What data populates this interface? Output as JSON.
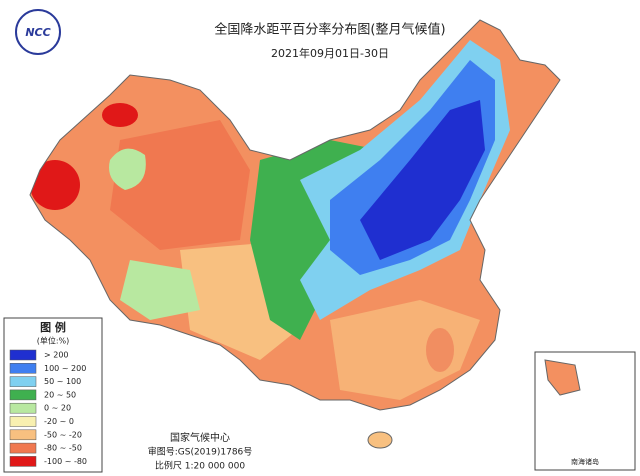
{
  "header": {
    "logo": "NCC",
    "title": "全国降水距平百分率分布图(整月气候值)",
    "subtitle": "2021年09月01日-30日"
  },
  "legend": {
    "title": "图 例",
    "unit": "(单位:%)",
    "items": [
      {
        "label": "> 200",
        "color": "#1f2fd0"
      },
      {
        "label": "100 ~ 200",
        "color": "#3f7ff0"
      },
      {
        "label": "50 ~ 100",
        "color": "#7fd0f0"
      },
      {
        "label": "20 ~ 50",
        "color": "#3fb04f"
      },
      {
        "label": "0 ~ 20",
        "color": "#b8e8a0"
      },
      {
        "label": "-20 ~ 0",
        "color": "#f8f0b0"
      },
      {
        "label": "-50 ~ -20",
        "color": "#f8c080"
      },
      {
        "label": "-80 ~ -50",
        "color": "#f07850"
      },
      {
        "label": "-100 ~ -80",
        "color": "#e01818"
      }
    ]
  },
  "footer": {
    "org": "国家气候中心",
    "approval": "审图号:GS(2019)1786号",
    "scale": "比例尺 1:20 000 000"
  },
  "inset": {
    "label": "南海诸岛"
  }
}
